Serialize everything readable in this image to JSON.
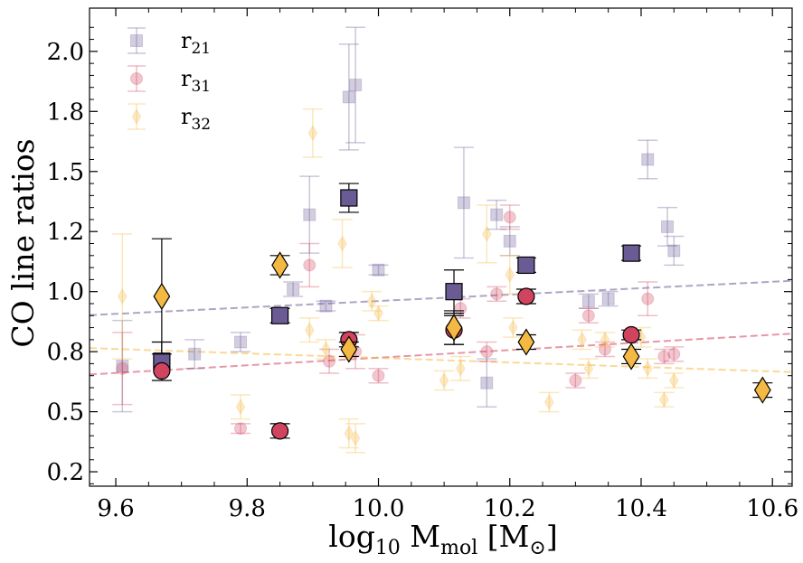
{
  "chart_data": {
    "type": "scatter",
    "xlabel": {
      "base": "log",
      "sub1": "10",
      "mid": " M",
      "sub2": "mol",
      "unit_open": " [M",
      "unit_sub": "⊙",
      "unit_close": "]"
    },
    "ylabel": "CO line ratios",
    "xlim": [
      9.56,
      10.63
    ],
    "ylim": [
      0.19,
      2.18
    ],
    "x_ticks": [
      9.6,
      9.8,
      10.0,
      10.2,
      10.4,
      10.6
    ],
    "x_tick_labels": [
      "9.6",
      "9.8",
      "10.0",
      "10.2",
      "10.4",
      "10.6"
    ],
    "y_ticks": [
      0.25,
      0.5,
      0.75,
      1.0,
      1.25,
      1.5,
      1.75,
      2.0
    ],
    "y_tick_labels": [
      "0.2",
      "0.5",
      "0.8",
      "1.0",
      "1.2",
      "1.5",
      "1.8",
      "2.0"
    ],
    "legend_position": "top-left",
    "colors": {
      "r21": "#6b5b95",
      "r31": "#d1445f",
      "r32": "#f4b942"
    },
    "series": [
      {
        "key": "r21",
        "name": "r",
        "sub": "21",
        "role": "individual",
        "marker": "square",
        "points": [
          {
            "x": 9.61,
            "y": 0.69,
            "err": 0.19
          },
          {
            "x": 9.72,
            "y": 0.74,
            "err": 0.06
          },
          {
            "x": 9.79,
            "y": 0.79,
            "err": 0.04
          },
          {
            "x": 9.87,
            "y": 1.01,
            "err": 0.03
          },
          {
            "x": 9.895,
            "y": 1.32,
            "err": 0.16
          },
          {
            "x": 9.92,
            "y": 0.94,
            "err": 0.02
          },
          {
            "x": 9.955,
            "y": 1.81,
            "err": 0.22
          },
          {
            "x": 9.965,
            "y": 1.86,
            "err": 0.24
          },
          {
            "x": 10.0,
            "y": 1.09,
            "err": 0.02
          },
          {
            "x": 10.13,
            "y": 1.37,
            "err": 0.23
          },
          {
            "x": 10.165,
            "y": 0.62,
            "err": 0.1
          },
          {
            "x": 10.18,
            "y": 1.32,
            "err": 0.06
          },
          {
            "x": 10.2,
            "y": 1.21,
            "err": 0.06
          },
          {
            "x": 10.32,
            "y": 0.96,
            "err": 0.03
          },
          {
            "x": 10.35,
            "y": 0.97,
            "err": 0.03
          },
          {
            "x": 10.41,
            "y": 1.55,
            "err": 0.08
          },
          {
            "x": 10.44,
            "y": 1.27,
            "err": 0.08
          },
          {
            "x": 10.45,
            "y": 1.17,
            "err": 0.06
          }
        ]
      },
      {
        "key": "r31",
        "name": "r",
        "sub": "31",
        "role": "individual",
        "marker": "circle",
        "points": [
          {
            "x": 9.61,
            "y": 0.68,
            "err": 0.15
          },
          {
            "x": 9.79,
            "y": 0.43,
            "err": 0.02
          },
          {
            "x": 9.895,
            "y": 1.11,
            "err": 0.09
          },
          {
            "x": 9.925,
            "y": 0.71,
            "err": 0.05
          },
          {
            "x": 9.965,
            "y": 0.75,
            "err": 0.07
          },
          {
            "x": 10.0,
            "y": 0.65,
            "err": 0.03
          },
          {
            "x": 10.125,
            "y": 0.93,
            "err": 0.04
          },
          {
            "x": 10.165,
            "y": 0.75,
            "err": 0.04
          },
          {
            "x": 10.18,
            "y": 0.99,
            "err": 0.03
          },
          {
            "x": 10.2,
            "y": 1.31,
            "err": 0.05
          },
          {
            "x": 10.3,
            "y": 0.63,
            "err": 0.03
          },
          {
            "x": 10.32,
            "y": 0.9,
            "err": 0.03
          },
          {
            "x": 10.345,
            "y": 0.76,
            "err": 0.03
          },
          {
            "x": 10.41,
            "y": 0.97,
            "err": 0.07
          },
          {
            "x": 10.435,
            "y": 0.73,
            "err": 0.03
          },
          {
            "x": 10.45,
            "y": 0.74,
            "err": 0.03
          }
        ]
      },
      {
        "key": "r32",
        "name": "r",
        "sub": "32",
        "role": "individual",
        "marker": "thin-diamond",
        "points": [
          {
            "x": 9.61,
            "y": 0.98,
            "err": 0.26
          },
          {
            "x": 9.79,
            "y": 0.52,
            "err": 0.05
          },
          {
            "x": 9.895,
            "y": 0.84,
            "err": 0.05
          },
          {
            "x": 9.9,
            "y": 1.66,
            "err": 0.1
          },
          {
            "x": 9.92,
            "y": 0.76,
            "err": 0.04
          },
          {
            "x": 9.945,
            "y": 1.2,
            "err": 0.1
          },
          {
            "x": 9.955,
            "y": 0.41,
            "err": 0.06
          },
          {
            "x": 9.965,
            "y": 0.39,
            "err": 0.06
          },
          {
            "x": 9.99,
            "y": 0.96,
            "err": 0.04
          },
          {
            "x": 10.0,
            "y": 0.91,
            "err": 0.03
          },
          {
            "x": 10.1,
            "y": 0.63,
            "err": 0.04
          },
          {
            "x": 10.125,
            "y": 0.68,
            "err": 0.05
          },
          {
            "x": 10.165,
            "y": 1.24,
            "err": 0.12
          },
          {
            "x": 10.2,
            "y": 1.07,
            "err": 0.08
          },
          {
            "x": 10.205,
            "y": 0.85,
            "err": 0.04
          },
          {
            "x": 10.26,
            "y": 0.54,
            "err": 0.04
          },
          {
            "x": 10.31,
            "y": 0.8,
            "err": 0.04
          },
          {
            "x": 10.32,
            "y": 0.68,
            "err": 0.04
          },
          {
            "x": 10.345,
            "y": 0.8,
            "err": 0.03
          },
          {
            "x": 10.4,
            "y": 0.81,
            "err": 0.04
          },
          {
            "x": 10.41,
            "y": 0.68,
            "err": 0.04
          },
          {
            "x": 10.435,
            "y": 0.55,
            "err": 0.03
          },
          {
            "x": 10.45,
            "y": 0.63,
            "err": 0.03
          }
        ]
      },
      {
        "key": "r21",
        "role": "binned",
        "marker": "square",
        "points": [
          {
            "x": 9.67,
            "y": 0.71,
            "err": 0.08
          },
          {
            "x": 9.85,
            "y": 0.9,
            "err": 0.03
          },
          {
            "x": 9.955,
            "y": 1.39,
            "err": 0.06
          },
          {
            "x": 10.115,
            "y": 1.0,
            "err": 0.09
          },
          {
            "x": 10.225,
            "y": 1.11,
            "err": 0.03
          },
          {
            "x": 10.385,
            "y": 1.16,
            "err": 0.03
          }
        ]
      },
      {
        "key": "r31",
        "role": "binned",
        "marker": "circle",
        "points": [
          {
            "x": 9.67,
            "y": 0.67,
            "err": 0.0
          },
          {
            "x": 9.85,
            "y": 0.42,
            "err": 0.03
          },
          {
            "x": 9.955,
            "y": 0.8,
            "err": 0.03
          },
          {
            "x": 10.115,
            "y": 0.84,
            "err": 0.06
          },
          {
            "x": 10.225,
            "y": 0.98,
            "err": 0.03
          },
          {
            "x": 10.385,
            "y": 0.82,
            "err": 0.02
          }
        ]
      },
      {
        "key": "r32",
        "role": "binned",
        "marker": "diamond",
        "points": [
          {
            "x": 9.67,
            "y": 0.98,
            "err": 0.24
          },
          {
            "x": 9.85,
            "y": 1.11,
            "err": 0.04
          },
          {
            "x": 9.955,
            "y": 0.76,
            "err": 0.03
          },
          {
            "x": 10.115,
            "y": 0.85,
            "err": 0.07
          },
          {
            "x": 10.225,
            "y": 0.79,
            "err": 0.03
          },
          {
            "x": 10.385,
            "y": 0.73,
            "err": 0.03
          },
          {
            "x": 10.585,
            "y": 0.59,
            "err": 0.03
          }
        ]
      }
    ],
    "fit_lines": [
      {
        "key": "r21",
        "x": [
          9.56,
          10.63
        ],
        "y": [
          0.902,
          1.045
        ]
      },
      {
        "key": "r31",
        "x": [
          9.56,
          10.63
        ],
        "y": [
          0.655,
          0.825
        ]
      },
      {
        "key": "r32",
        "x": [
          9.56,
          10.63
        ],
        "y": [
          0.765,
          0.665
        ]
      }
    ]
  }
}
